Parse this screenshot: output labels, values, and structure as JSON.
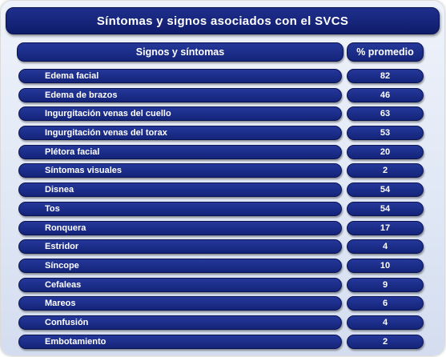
{
  "title": "Síntomas y signos asociados con el SVCS",
  "table": {
    "header": {
      "label": "Signos y síntomas",
      "value": "% promedio"
    },
    "rows": [
      {
        "label": "Edema facial",
        "value": "82"
      },
      {
        "label": "Edema de brazos",
        "value": "46"
      },
      {
        "label": "Ingurgitación venas del cuello",
        "value": "63"
      },
      {
        "label": "Ingurgitación venas del torax",
        "value": "53"
      },
      {
        "label": "Plétora facial",
        "value": "20"
      },
      {
        "label": "Síntomas visuales",
        "value": "2"
      },
      {
        "label": "Disnea",
        "value": "54"
      },
      {
        "label": "Tos",
        "value": "54"
      },
      {
        "label": "Ronquera",
        "value": "17"
      },
      {
        "label": "Estridor",
        "value": "4"
      },
      {
        "label": "Síncope",
        "value": "10"
      },
      {
        "label": "Cefaleas",
        "value": "9"
      },
      {
        "label": "Mareos",
        "value": "6"
      },
      {
        "label": "Confusión",
        "value": "4"
      },
      {
        "label": "Embotamiento",
        "value": "2"
      }
    ]
  },
  "colors": {
    "pill": "#14247a",
    "background": "#dfe7f5",
    "text": "#ffffff"
  }
}
